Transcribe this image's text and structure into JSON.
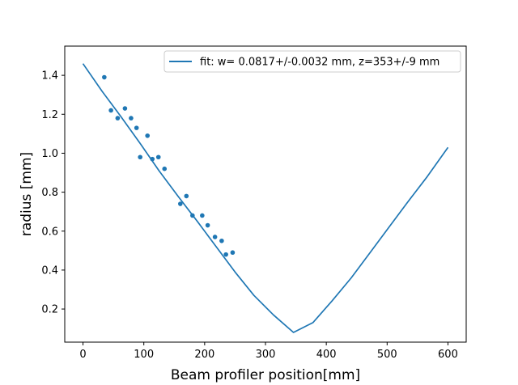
{
  "chart_data": {
    "type": "scatter",
    "title": "",
    "xlabel": "Beam profiler position[mm]",
    "ylabel": "radius [mm]",
    "xlim": [
      -30,
      630
    ],
    "ylim": [
      0.03,
      1.55
    ],
    "xticks": [
      0,
      100,
      200,
      300,
      400,
      500,
      600
    ],
    "yticks": [
      0.2,
      0.4,
      0.6,
      0.8,
      1.0,
      1.2,
      1.4
    ],
    "xtick_labels": [
      "0",
      "100",
      "200",
      "300",
      "400",
      "500",
      "600"
    ],
    "ytick_labels": [
      "0.2",
      "0.4",
      "0.6",
      "0.8",
      "1.0",
      "1.2",
      "1.4"
    ],
    "grid": false,
    "legend_position": "top-right",
    "colors": {
      "series": "#1f77b4"
    },
    "series": [
      {
        "name": "fit: w= 0.0817+/-0.0032 mm, z=353+/-9 mm",
        "type": "line",
        "x": [
          0,
          31,
          62,
          94,
          125,
          156,
          188,
          219,
          250,
          281,
          313,
          346,
          378,
          409,
          441,
          472,
          503,
          534,
          566,
          600
        ],
        "y": [
          1.46,
          1.32,
          1.19,
          1.05,
          0.91,
          0.78,
          0.65,
          0.52,
          0.39,
          0.27,
          0.17,
          0.08,
          0.13,
          0.24,
          0.36,
          0.49,
          0.62,
          0.75,
          0.88,
          1.03
        ]
      },
      {
        "name": "",
        "type": "scatter",
        "x": [
          35,
          46,
          57,
          69,
          79,
          88,
          94,
          106,
          114,
          124,
          134,
          160,
          170,
          180,
          196,
          205,
          217,
          228,
          235,
          246
        ],
        "y": [
          1.39,
          1.22,
          1.18,
          1.23,
          1.18,
          1.13,
          0.98,
          1.09,
          0.97,
          0.98,
          0.92,
          0.74,
          0.78,
          0.68,
          0.68,
          0.63,
          0.57,
          0.55,
          0.48,
          0.49
        ]
      }
    ]
  }
}
